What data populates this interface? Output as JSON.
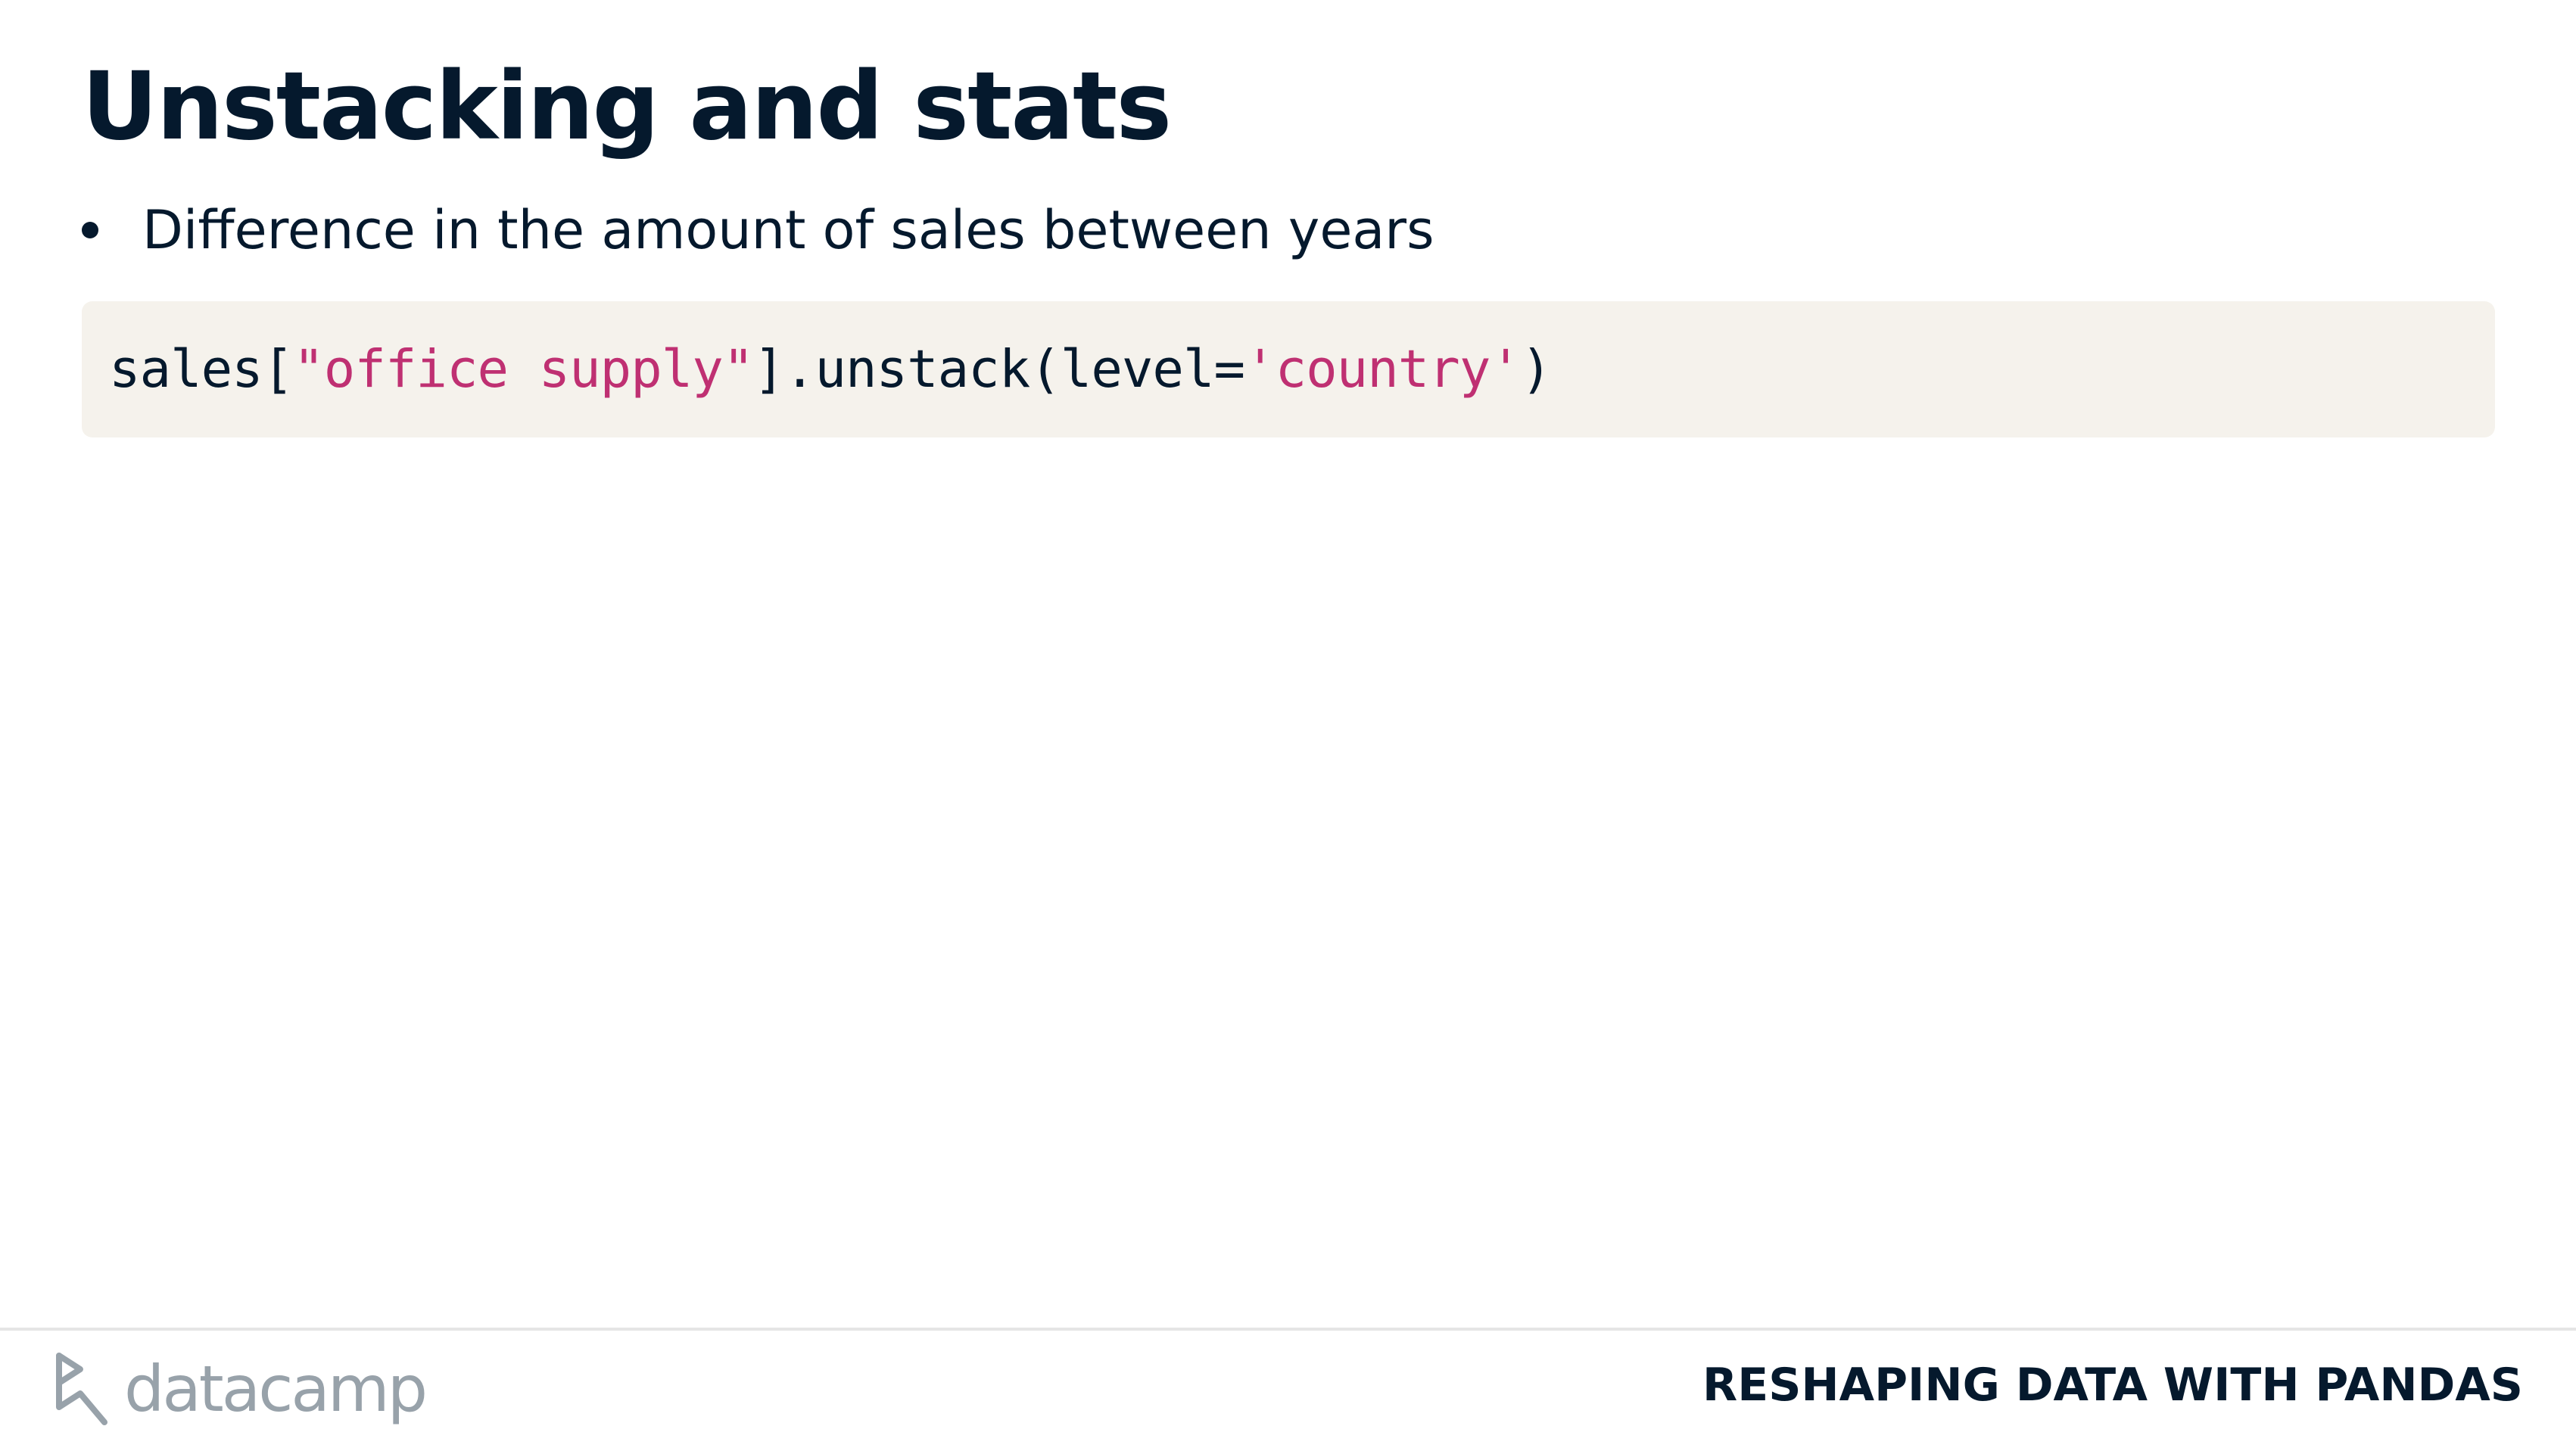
{
  "slide": {
    "title": "Unstacking and stats",
    "bullets": [
      "Difference in the amount of sales between years"
    ]
  },
  "code": {
    "tokens": {
      "t1": "sales[",
      "t2": "\"office supply\"",
      "t3": "].unstack(level=",
      "t4": "'country'",
      "t5": ")"
    }
  },
  "footer": {
    "logo_text": "datacamp",
    "course_name": "RESHAPING DATA WITH PANDAS"
  },
  "colors": {
    "text": "#05192d",
    "code_background": "#f5f2ec",
    "code_string": "#bf3072",
    "logo": "#98a2aa"
  }
}
